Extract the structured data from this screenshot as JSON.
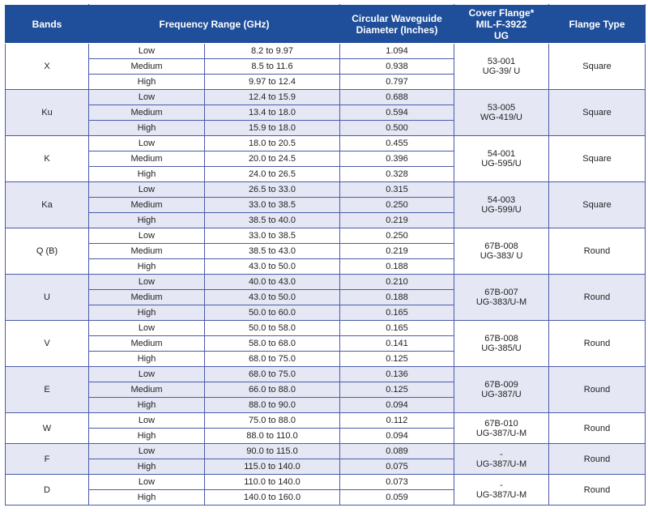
{
  "header": {
    "bands": "Bands",
    "frequency": "Frequency Range (GHz)",
    "diameter_line1": "Circular Waveguide",
    "diameter_line2": "Diameter (Inches)",
    "flange_line1": "Cover Flange*",
    "flange_line2": "MIL-F-3922",
    "flange_line3": "UG",
    "flange_type": "Flange Type"
  },
  "bands": [
    {
      "band": "X",
      "flange1": "53-001",
      "flange2": "UG-39/ U",
      "type": "Square",
      "rows": [
        {
          "level": "Low",
          "range": "8.2 to 9.97",
          "dia": "1.094"
        },
        {
          "level": "Medium",
          "range": "8.5 to 11.6",
          "dia": "0.938"
        },
        {
          "level": "High",
          "range": "9.97 to 12.4",
          "dia": "0.797"
        }
      ]
    },
    {
      "band": "Ku",
      "flange1": "53-005",
      "flange2": "WG-419/U",
      "type": "Square",
      "rows": [
        {
          "level": "Low",
          "range": "12.4 to 15.9",
          "dia": "0.688"
        },
        {
          "level": "Medium",
          "range": "13.4 to 18.0",
          "dia": "0.594"
        },
        {
          "level": "High",
          "range": "15.9 to 18.0",
          "dia": "0.500"
        }
      ]
    },
    {
      "band": "K",
      "flange1": "54-001",
      "flange2": "UG-595/U",
      "type": "Square",
      "rows": [
        {
          "level": "Low",
          "range": "18.0 to 20.5",
          "dia": "0.455"
        },
        {
          "level": "Medium",
          "range": "20.0 to 24.5",
          "dia": "0.396"
        },
        {
          "level": "High",
          "range": "24.0 to 26.5",
          "dia": "0.328"
        }
      ]
    },
    {
      "band": "Ka",
      "flange1": "54-003",
      "flange2": "UG-599/U",
      "type": "Square",
      "rows": [
        {
          "level": "Low",
          "range": "26.5 to 33.0",
          "dia": "0.315"
        },
        {
          "level": "Medium",
          "range": "33.0 to 38.5",
          "dia": "0.250"
        },
        {
          "level": "High",
          "range": "38.5 to 40.0",
          "dia": "0.219"
        }
      ]
    },
    {
      "band": "Q (B)",
      "flange1": "67B-008",
      "flange2": "UG-383/ U",
      "type": "Round",
      "rows": [
        {
          "level": "Low",
          "range": "33.0 to 38.5",
          "dia": "0.250"
        },
        {
          "level": "Medium",
          "range": "38.5 to 43.0",
          "dia": "0.219"
        },
        {
          "level": "High",
          "range": "43.0 to 50.0",
          "dia": "0.188"
        }
      ]
    },
    {
      "band": "U",
      "flange1": "67B-007",
      "flange2": "UG-383/U-M",
      "type": "Round",
      "rows": [
        {
          "level": "Low",
          "range": "40.0 to 43.0",
          "dia": "0.210"
        },
        {
          "level": "Medium",
          "range": "43.0 to 50.0",
          "dia": "0.188"
        },
        {
          "level": "High",
          "range": "50.0 to 60.0",
          "dia": "0.165"
        }
      ]
    },
    {
      "band": "V",
      "flange1": "67B-008",
      "flange2": "UG-385/U",
      "type": "Round",
      "rows": [
        {
          "level": "Low",
          "range": "50.0 to 58.0",
          "dia": "0.165"
        },
        {
          "level": "Medium",
          "range": "58.0 to 68.0",
          "dia": "0.141"
        },
        {
          "level": "High",
          "range": "68.0 to 75.0",
          "dia": "0.125"
        }
      ]
    },
    {
      "band": "E",
      "flange1": "67B-009",
      "flange2": "UG-387/U",
      "type": "Round",
      "rows": [
        {
          "level": "Low",
          "range": "68.0 to 75.0",
          "dia": "0.136"
        },
        {
          "level": "Medium",
          "range": "66.0 to 88.0",
          "dia": "0.125"
        },
        {
          "level": "High",
          "range": "88.0 to 90.0",
          "dia": "0.094"
        }
      ]
    },
    {
      "band": "W",
      "flange1": "67B-010",
      "flange2": "UG-387/U-M",
      "type": "Round",
      "rows": [
        {
          "level": "Low",
          "range": "75.0 to 88.0",
          "dia": "0.112"
        },
        {
          "level": "High",
          "range": "88.0 to 110.0",
          "dia": "0.094"
        }
      ]
    },
    {
      "band": "F",
      "flange1": "-",
      "flange2": "UG-387/U-M",
      "type": "Round",
      "rows": [
        {
          "level": "Low",
          "range": "90.0 to 115.0",
          "dia": "0.089"
        },
        {
          "level": "High",
          "range": "115.0 to 140.0",
          "dia": "0.075"
        }
      ]
    },
    {
      "band": "D",
      "flange1": "-",
      "flange2": "UG-387/U-M",
      "type": "Round",
      "rows": [
        {
          "level": "Low",
          "range": "110.0 to 140.0",
          "dia": "0.073"
        },
        {
          "level": "High",
          "range": "140.0 to 160.0",
          "dia": "0.059"
        }
      ]
    }
  ]
}
